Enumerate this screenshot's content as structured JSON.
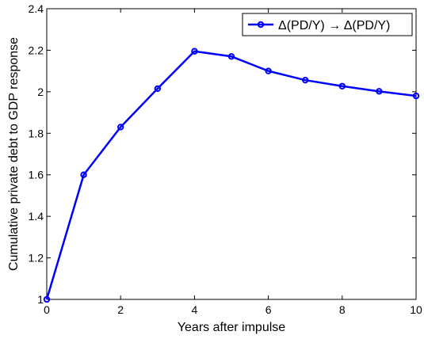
{
  "chart_data": {
    "type": "line",
    "title": "",
    "xlabel": "Years after impulse",
    "ylabel": "Cumulative private debt to GDP response",
    "xlim": [
      0,
      10
    ],
    "ylim": [
      1,
      2.4
    ],
    "xticks": [
      0,
      2,
      4,
      6,
      8,
      10
    ],
    "yticks": [
      1,
      1.2,
      1.4,
      1.6,
      1.8,
      2,
      2.2,
      2.4
    ],
    "xtick_labels": [
      "0",
      "2",
      "4",
      "6",
      "8",
      "10"
    ],
    "ytick_labels": [
      "1",
      "1.2",
      "1.4",
      "1.6",
      "1.8",
      "2",
      "2.2",
      "2.4"
    ],
    "grid": false,
    "legend_position": "top-right",
    "series": [
      {
        "name": "Δ(PD/Y) → Δ(PD/Y)",
        "color": "#0000ff",
        "marker": "circle",
        "x": [
          0,
          1,
          2,
          3,
          4,
          5,
          6,
          7,
          8,
          9,
          10
        ],
        "y": [
          1.0,
          1.6,
          1.83,
          2.015,
          2.195,
          2.17,
          2.1,
          2.056,
          2.027,
          2.002,
          1.98
        ]
      }
    ]
  }
}
